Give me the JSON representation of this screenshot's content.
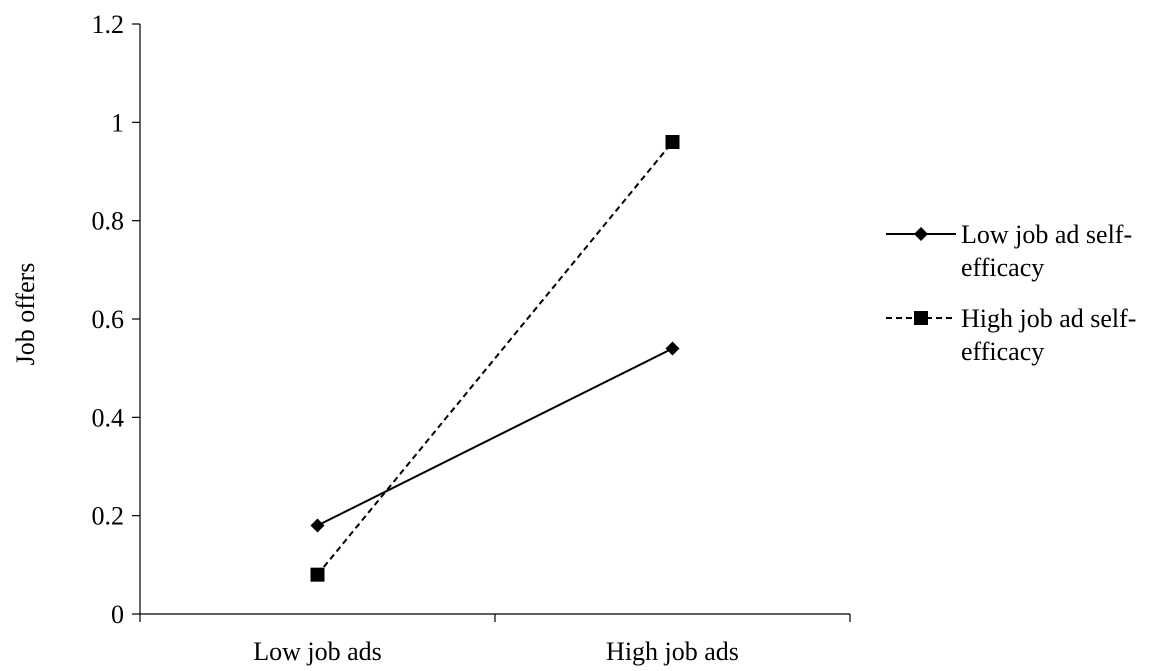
{
  "chart_data": {
    "type": "line",
    "title": "",
    "xlabel": "",
    "ylabel": "Job offers",
    "categories": [
      "Low job ads",
      "High job ads"
    ],
    "ylim": [
      0,
      1.2
    ],
    "yticks": [
      0,
      0.2,
      0.4,
      0.6,
      0.8,
      1,
      1.2
    ],
    "ytick_labels": [
      "0",
      "0.2",
      "0.4",
      "0.6",
      "0.8",
      "1",
      "1.2"
    ],
    "grid": false,
    "legend_position": "right",
    "series": [
      {
        "name": "Low job ad self-efficacy",
        "legend_lines": [
          "Low job ad self-",
          "efficacy"
        ],
        "values": [
          0.18,
          0.54
        ],
        "marker": "diamond",
        "line_style": "solid",
        "color": "#000000"
      },
      {
        "name": "High job ad self-efficacy",
        "legend_lines": [
          "High job ad self-",
          "efficacy"
        ],
        "values": [
          0.08,
          0.96
        ],
        "marker": "square",
        "line_style": "dashed",
        "color": "#000000"
      }
    ]
  }
}
